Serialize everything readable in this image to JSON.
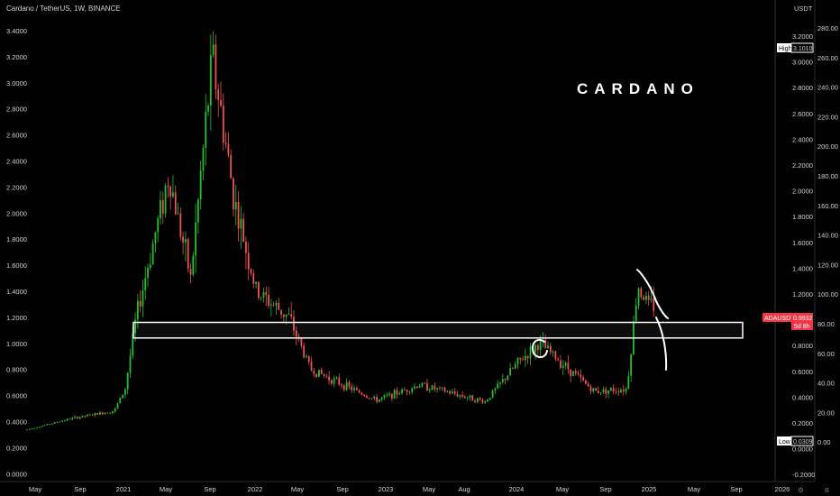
{
  "header": {
    "title": "Cardano / TetherUS, 1W, BINANCE"
  },
  "annotation": {
    "watermark": "CARDANO"
  },
  "axes": {
    "left_ticks": [
      "3.4000",
      "3.2000",
      "3.0000",
      "2.8000",
      "2.6000",
      "2.4000",
      "2.2000",
      "2.0000",
      "1.8000",
      "1.6000",
      "1.4000",
      "1.2000",
      "1.0000",
      "0.8000",
      "0.6000",
      "0.4000",
      "0.2000",
      "0.0000",
      "-0.0000"
    ],
    "right_unit": "USDT",
    "right_price_ticks": [
      "3.2000",
      "3.0000",
      "2.8000",
      "2.6000",
      "2.4000",
      "2.2000",
      "2.0000",
      "1.8000",
      "1.6000",
      "1.4000",
      "1.2000",
      "1.0000",
      "0.8000",
      "0.6000",
      "0.4000",
      "0.2000",
      "0.0000",
      "-0.2000"
    ],
    "right_pct_ticks": [
      "280.00",
      "260.00",
      "240.00",
      "220.00",
      "200.00",
      "180.00",
      "160.00",
      "140.00",
      "120.00",
      "100.00",
      "80.00",
      "60.00",
      "40.00",
      "20.00",
      "0.00"
    ],
    "x_ticks": [
      "May",
      "Sep",
      "2021",
      "May",
      "Sep",
      "2022",
      "May",
      "Sep",
      "2023",
      "May",
      "Aug",
      "2024",
      "May",
      "Sep",
      "2025",
      "May",
      "Sep",
      "2026"
    ]
  },
  "markers": {
    "high_label": "High",
    "high_value": "3.1010",
    "low_label": "Low",
    "low_value": "0.0309",
    "symbol": "ADAUSDT",
    "last_price": "0.9932",
    "countdown": "5d 8h"
  },
  "colors": {
    "up": "#26a69a",
    "up_bright": "#22c02a",
    "down": "#ef5350",
    "accent": "#f23645"
  },
  "chart_data": {
    "type": "candlestick",
    "title": "Cardano / TetherUS, 1W, BINANCE",
    "ylim": [
      -0.08,
      3.45
    ],
    "key_points": [
      {
        "date": "2020-04",
        "price": 0.035
      },
      {
        "date": "2020-08",
        "price": 0.12
      },
      {
        "date": "2020-12",
        "price": 0.18
      },
      {
        "date": "2021-01",
        "price": 0.35
      },
      {
        "date": "2021-02",
        "price": 0.9
      },
      {
        "date": "2021-05",
        "price": 2.0
      },
      {
        "date": "2021-07",
        "price": 1.2
      },
      {
        "date": "2021-09",
        "price": 2.9
      },
      {
        "date": "2021-11",
        "price": 1.8
      },
      {
        "date": "2022-01",
        "price": 1.1
      },
      {
        "date": "2022-04",
        "price": 0.9
      },
      {
        "date": "2022-06",
        "price": 0.5
      },
      {
        "date": "2022-12",
        "price": 0.26
      },
      {
        "date": "2023-04",
        "price": 0.38
      },
      {
        "date": "2023-10",
        "price": 0.25
      },
      {
        "date": "2024-01",
        "price": 0.55
      },
      {
        "date": "2024-03",
        "price": 0.7
      },
      {
        "date": "2024-08",
        "price": 0.33
      },
      {
        "date": "2024-11",
        "price": 0.35
      },
      {
        "date": "2024-12",
        "price": 1.15
      },
      {
        "date": "2025-01",
        "price": 0.99
      }
    ],
    "support_zone": [
      0.74,
      0.86
    ],
    "high": 3.101,
    "low": 0.0309,
    "last": 0.9932
  }
}
